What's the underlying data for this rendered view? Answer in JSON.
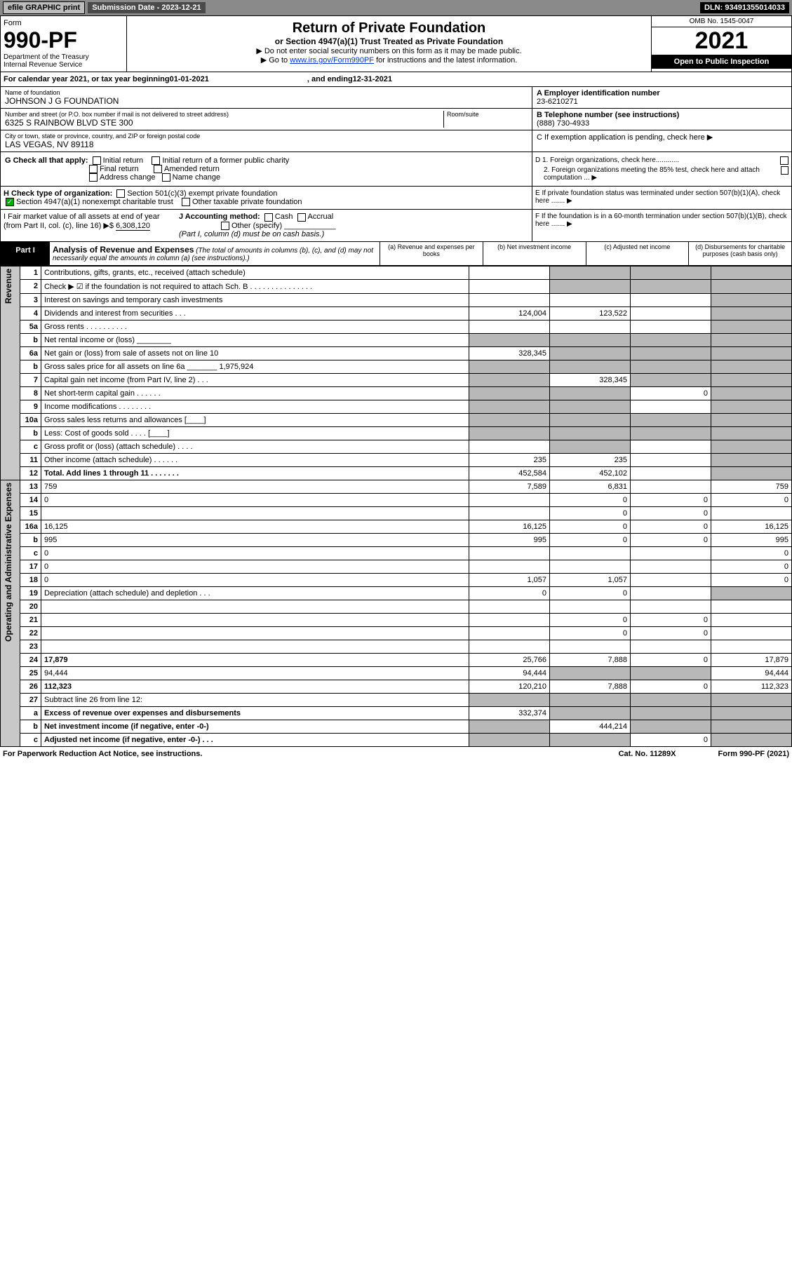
{
  "topbar": {
    "efile": "efile GRAPHIC print",
    "sub_label": "Submission Date - ",
    "sub_date": "2023-12-21",
    "dln": "DLN: 93491355014033"
  },
  "formbox": {
    "form_word": "Form",
    "form_no": "990-PF",
    "dept": "Department of the Treasury",
    "irs": "Internal Revenue Service"
  },
  "center": {
    "title": "Return of Private Foundation",
    "sub1": "or Section 4947(a)(1) Trust Treated as Private Foundation",
    "sub2a": "▶ Do not enter social security numbers on this form as it may be made public.",
    "sub2b_pre": "▶ Go to ",
    "sub2b_link": "www.irs.gov/Form990PF",
    "sub2b_post": " for instructions and the latest information."
  },
  "right": {
    "omb": "OMB No. 1545-0047",
    "year": "2021",
    "open": "Open to Public Inspection"
  },
  "cal": {
    "pre": "For calendar year 2021, or tax year beginning ",
    "begin": "01-01-2021",
    "mid": " , and ending ",
    "end": "12-31-2021"
  },
  "foundation": {
    "name_lbl": "Name of foundation",
    "name": "JOHNSON J G FOUNDATION",
    "addr_lbl": "Number and street (or P.O. box number if mail is not delivered to street address)",
    "addr": "6325 S RAINBOW BLVD STE 300",
    "room_lbl": "Room/suite",
    "city_lbl": "City or town, state or province, country, and ZIP or foreign postal code",
    "city": "LAS VEGAS, NV  89118"
  },
  "ein": {
    "lbl": "A Employer identification number",
    "val": "23-6210271"
  },
  "tel": {
    "lbl": "B Telephone number (see instructions)",
    "val": "(888) 730-4933"
  },
  "sectC": "C If exemption application is pending, check here ▶",
  "sectG": {
    "lbl": "G Check all that apply:",
    "initial": "Initial return",
    "initial_pub": "Initial return of a former public charity",
    "final": "Final return",
    "amended": "Amended return",
    "addr": "Address change",
    "name": "Name change"
  },
  "sectD": {
    "d1": "D 1. Foreign organizations, check here............",
    "d2": "2. Foreign organizations meeting the 85% test, check here and attach computation ...  ▶"
  },
  "sectH": {
    "lbl": "H Check type of organization:",
    "s501": "Section 501(c)(3) exempt private foundation",
    "s4947": "Section 4947(a)(1) nonexempt charitable trust",
    "other": "Other taxable private foundation"
  },
  "sectE": "E If private foundation status was terminated under section 507(b)(1)(A), check here .......  ▶",
  "sectI": {
    "lbl": "I Fair market value of all assets at end of year (from Part II, col. (c), line 16) ▶$",
    "val": "6,308,120"
  },
  "sectJ": {
    "lbl": "J Accounting method:",
    "cash": "Cash",
    "accrual": "Accrual",
    "other": "Other (specify)",
    "note": "(Part I, column (d) must be on cash basis.)"
  },
  "sectF": "F If the foundation is in a 60-month termination under section 507(b)(1)(B), check here .......  ▶",
  "part1": {
    "tag": "Part I",
    "title": "Analysis of Revenue and Expenses",
    "title_note": "(The total of amounts in columns (b), (c), and (d) may not necessarily equal the amounts in column (a) (see instructions).)",
    "col_a": "(a) Revenue and expenses per books",
    "col_b": "(b) Net investment income",
    "col_c": "(c) Adjusted net income",
    "col_d": "(d) Disbursements for charitable purposes (cash basis only)"
  },
  "side_rev": "Revenue",
  "side_ops": "Operating and Administrative Expenses",
  "rows": {
    "r1": {
      "n": "1",
      "d": "Contributions, gifts, grants, etc., received (attach schedule)",
      "a": "",
      "b_s": 1,
      "c_s": 1,
      "d_s": 1
    },
    "r2": {
      "n": "2",
      "d": "Check ▶ ☑ if the foundation is not required to attach Sch. B    .   .   .   .   .   .   .   .   .   .   .   .   .   .   .",
      "a": "",
      "b_s": 1,
      "c_s": 1,
      "d_s": 1
    },
    "r3": {
      "n": "3",
      "d": "Interest on savings and temporary cash investments",
      "a": "",
      "b": "",
      "c": "",
      "d_s": 1
    },
    "r4": {
      "n": "4",
      "d": "Dividends and interest from securities    .    .    .",
      "a": "124,004",
      "b": "123,522",
      "c": "",
      "d_s": 1
    },
    "r5a": {
      "n": "5a",
      "d": "Gross rents    .    .    .    .    .    .    .    .    .    .",
      "a": "",
      "b": "",
      "c": "",
      "d_s": 1
    },
    "r5b": {
      "n": "b",
      "d": "Net rental income or (loss) ________",
      "a_s": 1,
      "b_s": 1,
      "c_s": 1,
      "d_s": 1
    },
    "r6a": {
      "n": "6a",
      "d": "Net gain or (loss) from sale of assets not on line 10",
      "a": "328,345",
      "b_s": 1,
      "c_s": 1,
      "d_s": 1
    },
    "r6b": {
      "n": "b",
      "d": "Gross sales price for all assets on line 6a _______ 1,975,924",
      "a_s": 1,
      "b_s": 1,
      "c_s": 1,
      "d_s": 1
    },
    "r7": {
      "n": "7",
      "d": "Capital gain net income (from Part IV, line 2)    .    .    .",
      "a_s": 1,
      "b": "328,345",
      "c_s": 1,
      "d_s": 1
    },
    "r8": {
      "n": "8",
      "d": "Net short-term capital gain    .    .    .    .    .    .",
      "a_s": 1,
      "b_s": 1,
      "c": "0",
      "d_s": 1
    },
    "r9": {
      "n": "9",
      "d": "Income modifications  .    .    .    .    .    .    .    .",
      "a_s": 1,
      "b_s": 1,
      "c": "",
      "d_s": 1
    },
    "r10a": {
      "n": "10a",
      "d": "Gross sales less returns and allowances  [____]",
      "a_s": 1,
      "b_s": 1,
      "c_s": 1,
      "d_s": 1
    },
    "r10b": {
      "n": "b",
      "d": "Less: Cost of goods sold    .    .    .    .  [____]",
      "a_s": 1,
      "b_s": 1,
      "c_s": 1,
      "d_s": 1
    },
    "r10c": {
      "n": "c",
      "d": "Gross profit or (loss) (attach schedule)    .    .    .    .",
      "a": "",
      "b_s": 1,
      "c": "",
      "d_s": 1
    },
    "r11": {
      "n": "11",
      "d": "Other income (attach schedule)    .    .    .    .    .    .",
      "a": "235",
      "b": "235",
      "c": "",
      "d_s": 1
    },
    "r12": {
      "n": "12",
      "d": "Total. Add lines 1 through 11    .    .    .    .    .    .    .",
      "a": "452,584",
      "b": "452,102",
      "c": "",
      "d_s": 1,
      "bold": 1
    },
    "r13": {
      "n": "13",
      "d": "759",
      "a": "7,589",
      "b": "6,831",
      "c": ""
    },
    "r14": {
      "n": "14",
      "d": "0",
      "a": "",
      "b": "0",
      "c": "0"
    },
    "r15": {
      "n": "15",
      "d": "",
      "a": "",
      "b": "0",
      "c": "0"
    },
    "r16a": {
      "n": "16a",
      "d": "16,125",
      "a": "16,125",
      "b": "0",
      "c": "0"
    },
    "r16b": {
      "n": "b",
      "d": "995",
      "a": "995",
      "b": "0",
      "c": "0"
    },
    "r16c": {
      "n": "c",
      "d": "0",
      "a": "",
      "b": "",
      "c": ""
    },
    "r17": {
      "n": "17",
      "d": "0",
      "a": "",
      "b": "",
      "c": ""
    },
    "r18": {
      "n": "18",
      "d": "0",
      "a": "1,057",
      "b": "1,057",
      "c": ""
    },
    "r19": {
      "n": "19",
      "d": "Depreciation (attach schedule) and depletion    .    .    .",
      "a": "0",
      "b": "0",
      "c": "",
      "d_s": 1
    },
    "r20": {
      "n": "20",
      "d": "",
      "a": "",
      "b": "",
      "c": ""
    },
    "r21": {
      "n": "21",
      "d": "",
      "a": "",
      "b": "0",
      "c": "0"
    },
    "r22": {
      "n": "22",
      "d": "",
      "a": "",
      "b": "0",
      "c": "0"
    },
    "r23": {
      "n": "23",
      "d": "",
      "a": "",
      "b": "",
      "c": ""
    },
    "r24": {
      "n": "24",
      "d": "17,879",
      "a": "25,766",
      "b": "7,888",
      "c": "0",
      "bold": 1
    },
    "r25": {
      "n": "25",
      "d": "94,444",
      "a": "94,444",
      "b_s": 1,
      "c_s": 1
    },
    "r26": {
      "n": "26",
      "d": "112,323",
      "a": "120,210",
      "b": "7,888",
      "c": "0",
      "bold": 1
    },
    "r27": {
      "n": "27",
      "d": "Subtract line 26 from line 12:",
      "a_s": 1,
      "b_s": 1,
      "c_s": 1,
      "d_s": 1
    },
    "r27a": {
      "n": "a",
      "d": "Excess of revenue over expenses and disbursements",
      "a": "332,374",
      "b_s": 1,
      "c_s": 1,
      "d_s": 1,
      "bold": 1
    },
    "r27b": {
      "n": "b",
      "d": "Net investment income (if negative, enter -0-)",
      "a_s": 1,
      "b": "444,214",
      "c_s": 1,
      "d_s": 1,
      "bold": 1
    },
    "r27c": {
      "n": "c",
      "d": "Adjusted net income (if negative, enter -0-)    .    .    .",
      "a_s": 1,
      "b_s": 1,
      "c": "0",
      "d_s": 1,
      "bold": 1
    }
  },
  "rev_keys": [
    "r1",
    "r2",
    "r3",
    "r4",
    "r5a",
    "r5b",
    "r6a",
    "r6b",
    "r7",
    "r8",
    "r9",
    "r10a",
    "r10b",
    "r10c",
    "r11",
    "r12"
  ],
  "ops_keys": [
    "r13",
    "r14",
    "r15",
    "r16a",
    "r16b",
    "r16c",
    "r17",
    "r18",
    "r19",
    "r20",
    "r21",
    "r22",
    "r23",
    "r24",
    "r25",
    "r26",
    "r27",
    "r27a",
    "r27b",
    "r27c"
  ],
  "footer": {
    "left": "For Paperwork Reduction Act Notice, see instructions.",
    "cat": "Cat. No. 11289X",
    "form": "Form 990-PF (2021)"
  },
  "colors": {
    "topbar_bg": "#8a8a8a",
    "btn_bg": "#bcbcbc",
    "sub_bg": "#4a4a4a",
    "shade": "#b8b8b8",
    "side": "#c8c8c8",
    "link": "#0033cc",
    "check": "#00aa00"
  }
}
